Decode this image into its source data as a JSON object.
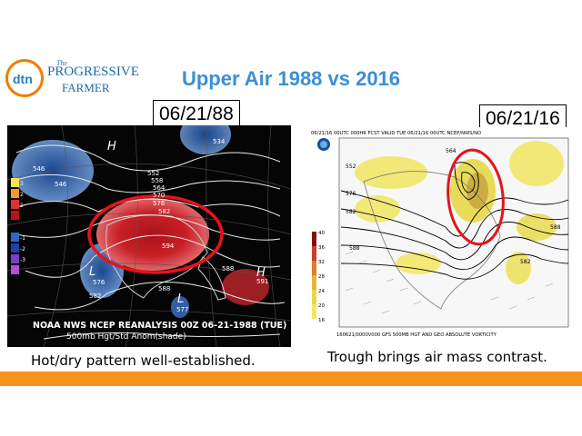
{
  "logo": {
    "circle_text": "dtn",
    "the": "The",
    "line1": "PROGRESSIVE",
    "line2": "FARMER"
  },
  "title": "Upper Air 1988 vs 2016",
  "left_panel": {
    "date": "06/21/88",
    "map_title_line1": "NOAA NWS NCEP REANALYSIS 00Z 06-21-1988 (TUE)",
    "map_title_line2": "500mb Hgt/Std Anom(shade)",
    "caption": "Hot/dry pattern well-established.",
    "contour_labels": [
      "546",
      "546",
      "552",
      "558",
      "564",
      "570",
      "576",
      "582",
      "588",
      "588",
      "594",
      "534",
      "576",
      "582",
      "591",
      "577"
    ],
    "legend_labels": [
      "3",
      "2",
      "1",
      "-1",
      "-2",
      "-3"
    ],
    "pressure_labels": [
      "H",
      "H",
      "L",
      "L"
    ]
  },
  "right_panel": {
    "date": "06/21/16",
    "header": "06/21/16 00UTC  000HR  FCST VALID TUE 06/21/16 00UTC  NCEP/NWS/NO",
    "footer": "160621/0000V000 GFS 500MB HGT AND GEO ABSOLUTE VORTICITY",
    "caption": "Trough brings air mass contrast.",
    "scale_labels": [
      "40",
      "36",
      "32",
      "28",
      "24",
      "20",
      "16"
    ],
    "contour_labels": [
      "582",
      "582",
      "588",
      "588",
      "576",
      "564",
      "552"
    ]
  },
  "colors": {
    "title": "#3a8fd6",
    "footer_bar": "#f7941d",
    "highlight_oval": "#e8121a"
  }
}
